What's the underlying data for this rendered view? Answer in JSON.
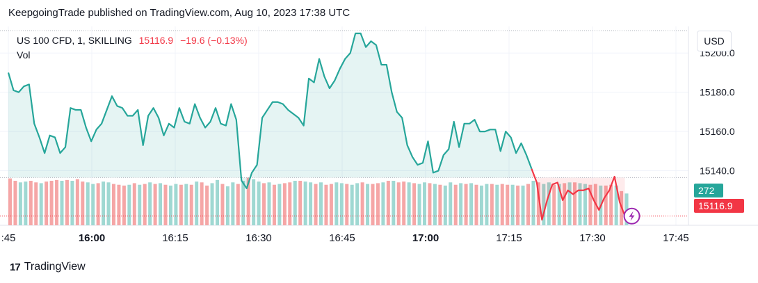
{
  "header": {
    "publisher": "KeepgoingTrade published on TradingView.com, Aug 10, 2023 17:38 UTC"
  },
  "legend": {
    "symbol": "US 100 CFD, 1, SKILLING",
    "price": "15116.9",
    "change": "−19.6 (−0.13%)",
    "volume_label": "Vol"
  },
  "currency_button": "USD",
  "volume_tag": "272",
  "last_price_tag": "15116.9",
  "brand": {
    "logo": "17",
    "name": "TradingView"
  },
  "colors": {
    "up": "#26a69a",
    "down": "#f23645",
    "vol_up": "#9fd8d2",
    "vol_down": "#f5a6a6"
  },
  "chart_data": {
    "type": "area",
    "ylim": [
      15120,
      15210
    ],
    "y_ticks": [
      15140,
      15160,
      15180,
      15200
    ],
    "y_tick_labels": [
      "15140.0",
      "15160.0",
      "15180.0",
      "15200.0"
    ],
    "x_ticks": [
      {
        "minute": 0,
        "label": ":45",
        "bold": false
      },
      {
        "minute": 15,
        "label": "16:00",
        "bold": true
      },
      {
        "minute": 30,
        "label": "16:15",
        "bold": false
      },
      {
        "minute": 45,
        "label": "16:30",
        "bold": false
      },
      {
        "minute": 60,
        "label": "16:45",
        "bold": false
      },
      {
        "minute": 75,
        "label": "17:00",
        "bold": true
      },
      {
        "minute": 90,
        "label": "17:15",
        "bold": false
      },
      {
        "minute": 105,
        "label": "17:30",
        "bold": false
      },
      {
        "minute": 120,
        "label": "17:45",
        "bold": false
      }
    ],
    "minute_offset_of_first_point": 0,
    "series": [
      {
        "values": [
          15190,
          15181,
          15180,
          15183,
          15184,
          15164,
          15157,
          15149,
          15158,
          15157,
          15149,
          15152,
          15172,
          15171,
          15171,
          15162,
          15155,
          15161,
          15164,
          15171,
          15178,
          15173,
          15172,
          15168,
          15168,
          15171,
          15153,
          15168,
          15172,
          15167,
          15158,
          15164,
          15162,
          15172,
          15165,
          15164,
          15174,
          15167,
          15162,
          15165,
          15172,
          15164,
          15163,
          15174,
          15166,
          15135,
          15131,
          15139,
          15143,
          15167,
          15171,
          15175,
          15175,
          15174,
          15171,
          15169,
          15167,
          15163,
          15187,
          15185,
          15197,
          15188,
          15182,
          15186,
          15192,
          15197,
          15200,
          15210,
          15210,
          15203,
          15206,
          15204,
          15194,
          15194,
          15180,
          15170,
          15167,
          15153,
          15147,
          15143,
          15144,
          15155,
          15139,
          15140,
          15148,
          15151,
          15165,
          15152,
          15164,
          15164,
          15166,
          15160,
          15160,
          15161,
          15161,
          15150,
          15160,
          15157,
          15149,
          15154,
          15148,
          15141
        ]
      },
      {
        "values": [
          15141,
          15134,
          15115,
          15125,
          15133,
          15134,
          15125,
          15130,
          15128,
          15130,
          15130,
          15131,
          15125,
          15120,
          15126,
          15130,
          15137,
          15124,
          15117
        ]
      }
    ],
    "volume": {
      "ylim": [
        0,
        700
      ],
      "values": [
        590,
        560,
        540,
        550,
        560,
        540,
        530,
        550,
        560,
        570,
        560,
        570,
        560,
        580,
        550,
        540,
        520,
        530,
        550,
        540,
        520,
        510,
        500,
        510,
        530,
        510,
        520,
        540,
        520,
        530,
        510,
        500,
        520,
        510,
        520,
        510,
        550,
        540,
        500,
        530,
        570,
        520,
        490,
        540,
        520,
        560,
        600,
        580,
        550,
        530,
        540,
        510,
        520,
        530,
        540,
        560,
        560,
        550,
        540,
        520,
        540,
        510,
        520,
        540,
        530,
        520,
        510,
        530,
        540,
        520,
        520,
        530,
        540,
        560,
        560,
        540,
        550,
        540,
        530,
        520,
        540,
        530,
        520,
        510,
        500,
        540,
        510,
        530,
        520,
        530,
        510,
        500,
        520,
        520,
        510,
        520,
        510,
        510,
        500,
        500,
        520,
        560,
        540,
        520,
        540,
        510,
        520,
        530,
        540,
        540,
        530,
        520,
        510,
        520,
        500,
        500,
        510,
        500,
        430,
        400
      ],
      "up": [
        0,
        0,
        1,
        1,
        0,
        0,
        1,
        0,
        0,
        0,
        1,
        0,
        1,
        0,
        0,
        1,
        1,
        0,
        1,
        1,
        0,
        0,
        0,
        1,
        0,
        1,
        0,
        1,
        0,
        1,
        0,
        1,
        1,
        0,
        1,
        0,
        1,
        0,
        0,
        1,
        1,
        0,
        1,
        1,
        0,
        1,
        0,
        1,
        1,
        0,
        1,
        0,
        1,
        0,
        0,
        1,
        0,
        1,
        1,
        0,
        1,
        0,
        0,
        1,
        1,
        0,
        1,
        1,
        0,
        1,
        0,
        0,
        1,
        0,
        1,
        0,
        0,
        1,
        0,
        1,
        1,
        0,
        1,
        0,
        1,
        1,
        0,
        1,
        0,
        1,
        0,
        1,
        1,
        0,
        1,
        0,
        0,
        1,
        0,
        1,
        0,
        1,
        0,
        1,
        1,
        0,
        1,
        0,
        1,
        0,
        1,
        1,
        0,
        0,
        1,
        0,
        0,
        1,
        0,
        1
      ]
    },
    "last_price": 15116.9,
    "base_price": 15136.5
  }
}
